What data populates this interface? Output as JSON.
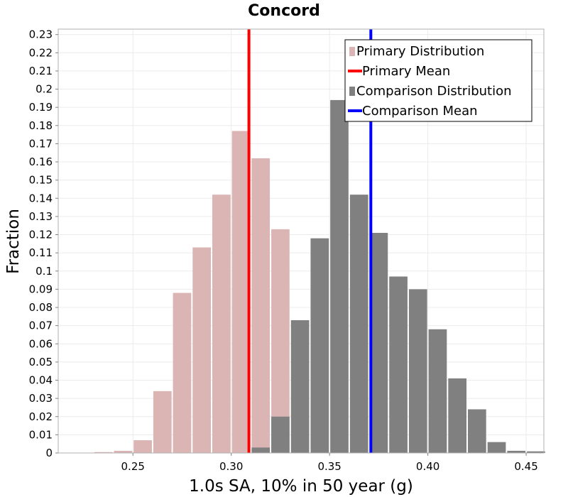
{
  "chart_data": {
    "type": "bar",
    "title": "Concord",
    "xlabel": "1.0s SA, 10% in 50 year (g)",
    "ylabel": "Fraction",
    "xlim": [
      0.212,
      0.459
    ],
    "ylim": [
      0,
      0.233
    ],
    "bin_width": 0.01,
    "grid": true,
    "legend_position": "top-right",
    "x_ticks": [
      {
        "value": 0.25,
        "label": "0.25"
      },
      {
        "value": 0.3,
        "label": "0.30"
      },
      {
        "value": 0.35,
        "label": "0.35"
      },
      {
        "value": 0.4,
        "label": "0.40"
      },
      {
        "value": 0.45,
        "label": "0.45"
      }
    ],
    "y_ticks": [
      {
        "value": 0,
        "label": "0"
      },
      {
        "value": 0.01,
        "label": "0.01"
      },
      {
        "value": 0.02,
        "label": "0.02"
      },
      {
        "value": 0.03,
        "label": "0.03"
      },
      {
        "value": 0.04,
        "label": "0.04"
      },
      {
        "value": 0.05,
        "label": "0.05"
      },
      {
        "value": 0.06,
        "label": "0.06"
      },
      {
        "value": 0.07,
        "label": "0.07"
      },
      {
        "value": 0.08,
        "label": "0.08"
      },
      {
        "value": 0.09,
        "label": "0.09"
      },
      {
        "value": 0.1,
        "label": "0.1"
      },
      {
        "value": 0.11,
        "label": "0.11"
      },
      {
        "value": 0.12,
        "label": "0.12"
      },
      {
        "value": 0.13,
        "label": "0.13"
      },
      {
        "value": 0.14,
        "label": "0.14"
      },
      {
        "value": 0.15,
        "label": "0.15"
      },
      {
        "value": 0.16,
        "label": "0.16"
      },
      {
        "value": 0.17,
        "label": "0.17"
      },
      {
        "value": 0.18,
        "label": "0.18"
      },
      {
        "value": 0.19,
        "label": "0.19"
      },
      {
        "value": 0.2,
        "label": "0.2"
      },
      {
        "value": 0.21,
        "label": "0.21"
      },
      {
        "value": 0.22,
        "label": "0.22"
      },
      {
        "value": 0.23,
        "label": "0.23"
      }
    ],
    "series": [
      {
        "name": "Primary Distribution",
        "kind": "histogram",
        "color": "#dbb4b4",
        "bin_centers": [
          0.235,
          0.245,
          0.255,
          0.265,
          0.275,
          0.285,
          0.295,
          0.305,
          0.315,
          0.325,
          0.335
        ],
        "values": [
          0.0005,
          0.0012,
          0.007,
          0.034,
          0.088,
          0.113,
          0.142,
          0.177,
          0.162,
          0.123,
          0.0005
        ]
      },
      {
        "name": "Comparison Distribution",
        "kind": "histogram",
        "color": "#808080",
        "bin_centers": [
          0.315,
          0.325,
          0.335,
          0.345,
          0.355,
          0.365,
          0.375,
          0.385,
          0.395,
          0.405,
          0.415,
          0.425,
          0.435,
          0.445,
          0.455
        ],
        "values": [
          0.003,
          0.02,
          0.073,
          0.118,
          0.194,
          0.142,
          0.121,
          0.097,
          0.09,
          0.068,
          0.041,
          0.024,
          0.006,
          0.0012,
          0.0009
        ]
      },
      {
        "name": "Primary Mean",
        "kind": "vline",
        "color": "#ff0000",
        "x": 0.309
      },
      {
        "name": "Comparison Mean",
        "kind": "vline",
        "color": "#0000ff",
        "x": 0.371
      }
    ],
    "legend": [
      {
        "label": "Primary Distribution",
        "symbol": "box",
        "color": "#dbb4b4"
      },
      {
        "label": "Primary Mean",
        "symbol": "line",
        "color": "#ff0000"
      },
      {
        "label": "Comparison Distribution",
        "symbol": "box",
        "color": "#808080"
      },
      {
        "label": "Comparison Mean",
        "symbol": "line",
        "color": "#0000ff"
      }
    ]
  }
}
